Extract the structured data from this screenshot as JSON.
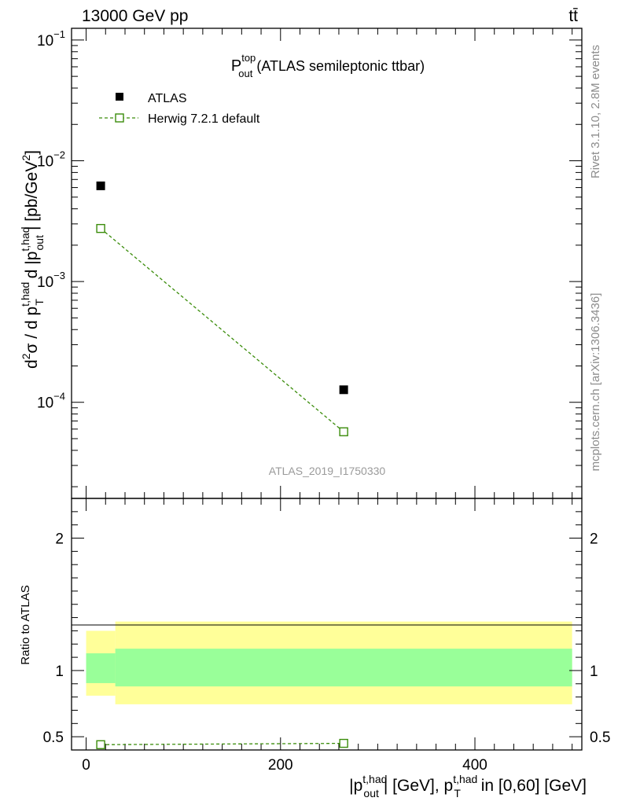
{
  "header": {
    "energy": "13000 GeV pp",
    "process": "tt̄"
  },
  "side": {
    "rivet": "Rivet 3.1.10,  2.8M events",
    "site": "mcplots.cern.ch [arXiv:1306.3436]"
  },
  "chart_data": [
    {
      "type": "scatter",
      "title_main": "P",
      "title_sup": "top",
      "title_sub": "out",
      "title_rest": " (ATLAS semileptonic ttbar)",
      "watermark": "ATLAS_2019_I1750330",
      "yscale": "log",
      "ylim": [
        1.6e-05,
        0.125
      ],
      "ylabel": {
        "prefix": "d",
        "p2": "2",
        "p3": "σ / d p",
        "p4": "t,had",
        "p5": "T",
        "p6": " d |p",
        "p7": "t,had",
        "p8": "out",
        "p9": "| [pb/GeV",
        "p10": "2",
        "p11": "]"
      },
      "yticks": [
        {
          "value": 0.1,
          "base": "10",
          "exp": "−1"
        },
        {
          "value": 0.01,
          "base": "10",
          "exp": "−2"
        },
        {
          "value": 0.001,
          "base": "10",
          "exp": "−3"
        },
        {
          "value": 0.0001,
          "base": "10",
          "exp": "−4"
        }
      ],
      "xlim": [
        -15,
        510
      ],
      "legend": {
        "position": "top-left",
        "entries": [
          "ATLAS",
          "Herwig 7.2.1 default"
        ]
      },
      "series": [
        {
          "name": "ATLAS",
          "marker": "filled-square",
          "color": "#000000",
          "x": [
            15,
            265
          ],
          "y": [
            0.0062,
            0.000127
          ],
          "bin_edges": [
            0,
            30,
            500
          ]
        },
        {
          "name": "Herwig 7.2.1 default",
          "marker": "open-square",
          "line": "dashed",
          "color": "#3a8c0a",
          "x": [
            15,
            265
          ],
          "y": [
            0.00275,
            5.7e-05
          ]
        }
      ]
    },
    {
      "type": "scatter",
      "ylabel": "Ratio to ATLAS",
      "ylim": [
        0.4,
        2.3
      ],
      "yticks": [
        {
          "value": 0.5,
          "label": "0.5"
        },
        {
          "value": 1,
          "label": "1"
        },
        {
          "value": 2,
          "label": "2"
        }
      ],
      "xlim": [
        -15,
        510
      ],
      "xticks": [
        {
          "value": 0,
          "label": "0"
        },
        {
          "value": 200,
          "label": "200"
        },
        {
          "value": 400,
          "label": "400"
        }
      ],
      "xlabel": {
        "a": "|p",
        "b": "t,had",
        "c": "out",
        "d": "| [GeV], p",
        "e": "t,had",
        "f": "T",
        "g": " in [0,60] [GeV]"
      },
      "bands": [
        {
          "name": "stat",
          "color": "#99ff99",
          "bins": [
            [
              0,
              30,
              0.905,
              1.13
            ],
            [
              30,
              500,
              0.88,
              1.165
            ]
          ]
        },
        {
          "name": "total",
          "color": "#ffff99",
          "bins": [
            [
              0,
              30,
              0.81,
              1.3
            ],
            [
              30,
              500,
              0.745,
              1.37
            ]
          ]
        }
      ],
      "series": [
        {
          "name": "Herwig 7.2.1 default",
          "marker": "open-square",
          "line": "dashed",
          "color": "#3a8c0a",
          "x": [
            15,
            265
          ],
          "y": [
            0.44,
            0.45
          ]
        }
      ]
    }
  ]
}
